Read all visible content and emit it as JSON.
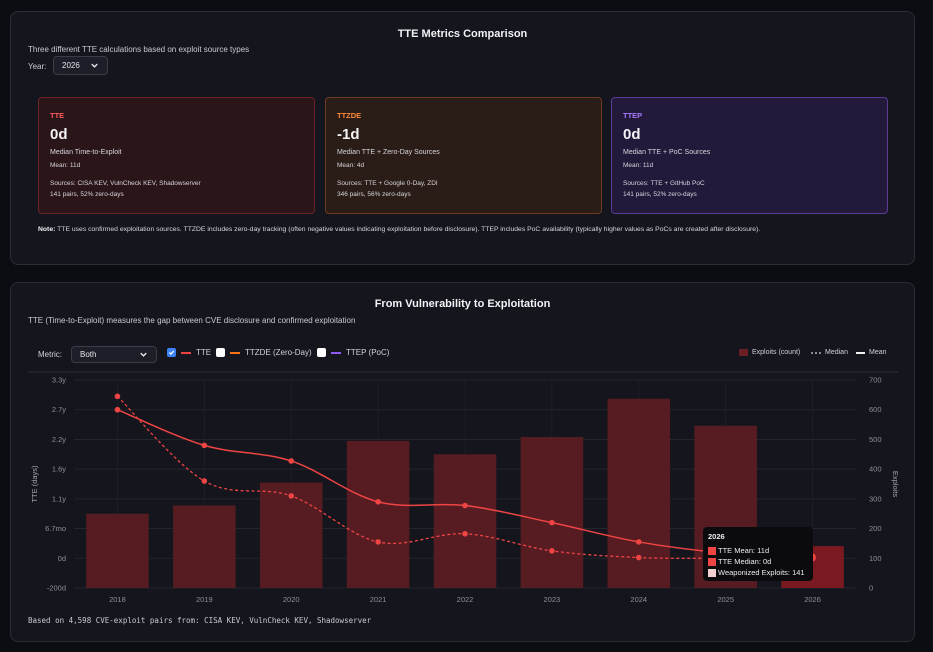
{
  "metrics": {
    "title": "TTE Metrics Comparison",
    "subtitle": "Three different TTE calculations based on exploit source types",
    "year_label": "Year:",
    "year_value": "2026",
    "cards": [
      {
        "key": "TTE",
        "value": "0d",
        "desc": "Median Time-to-Exploit",
        "mean": "Mean: 11d",
        "sources": "Sources: CISA KEV, VulnCheck KEV, Shadowserver",
        "pairs": "141 pairs, 52% zero-days"
      },
      {
        "key": "TTZDE",
        "value": "-1d",
        "desc": "Median TTE + Zero-Day Sources",
        "mean": "Mean: 4d",
        "sources": "Sources: TTE + Google 0-Day, ZDI",
        "pairs": "346 pairs, 56% zero-days"
      },
      {
        "key": "TTEP",
        "value": "0d",
        "desc": "Median TTE + PoC Sources",
        "mean": "Mean: 11d",
        "sources": "Sources: TTE + GitHub PoC",
        "pairs": "141 pairs, 52% zero-days"
      }
    ],
    "note_label": "Note:",
    "note_text": "TTE uses confirmed exploitation sources. TTZDE includes zero-day tracking (often negative values indicating exploitation before disclosure). TTEP includes PoC availability (typically higher values as PoCs are created after disclosure)."
  },
  "exploitation": {
    "title": "From Vulnerability to Exploitation",
    "subtitle": "TTE (Time-to-Exploit) measures the gap between CVE disclosure and confirmed exploitation",
    "metric_label": "Metric:",
    "metric_value": "Both",
    "toggles": [
      {
        "label": "TTE",
        "checked": true,
        "color": "#ef4444"
      },
      {
        "label": "TTZDE (Zero-Day)",
        "checked": false,
        "color": "#f97316"
      },
      {
        "label": "TTEP (PoC)",
        "checked": false,
        "color": "#8b5cf6"
      }
    ],
    "legend": {
      "bars": "Exploits (count)",
      "median": "Median",
      "mean": "Mean"
    },
    "footer": "Based on 4,598 CVE-exploit pairs from: CISA KEV, VulnCheck KEV, Shadowserver",
    "tooltip": {
      "title": "2026",
      "mean": "TTE Mean: 11d",
      "median": "TTE Median: 0d",
      "exploits": "Weaponized Exploits: 141"
    }
  },
  "chart_data": {
    "type": "bar",
    "categories": [
      "2018",
      "2019",
      "2020",
      "2021",
      "2022",
      "2023",
      "2024",
      "2025",
      "2026"
    ],
    "series": [
      {
        "name": "Exploits (count)",
        "type": "bar",
        "axis": "right",
        "values": [
          250,
          278,
          355,
          495,
          450,
          508,
          637,
          546,
          141
        ]
      },
      {
        "name": "Mean",
        "type": "line",
        "axis": "left",
        "values": [
          1000,
          760,
          655,
          380,
          355,
          240,
          110,
          35,
          11
        ]
      },
      {
        "name": "Median",
        "type": "line",
        "axis": "left",
        "values": [
          1090,
          520,
          420,
          110,
          165,
          50,
          5,
          0,
          0
        ]
      }
    ],
    "ylabel": "TTE (days)",
    "ylabel_right": "Exploits",
    "y_ticks": [
      {
        "value": -200,
        "label": "-200d"
      },
      {
        "value": 0,
        "label": "0d"
      },
      {
        "value": 200,
        "label": "6.7mo"
      },
      {
        "value": 400,
        "label": "1.1y"
      },
      {
        "value": 600,
        "label": "1.6y"
      },
      {
        "value": 800,
        "label": "2.2y"
      },
      {
        "value": 1000,
        "label": "2.7y"
      },
      {
        "value": 1200,
        "label": "3.3y"
      }
    ],
    "ylim": [
      -200,
      1200
    ],
    "y2_ticks": [
      0,
      100,
      200,
      300,
      400,
      500,
      600,
      700
    ],
    "y2lim": [
      0,
      700
    ],
    "grid": true,
    "legend_position": "top-right"
  }
}
